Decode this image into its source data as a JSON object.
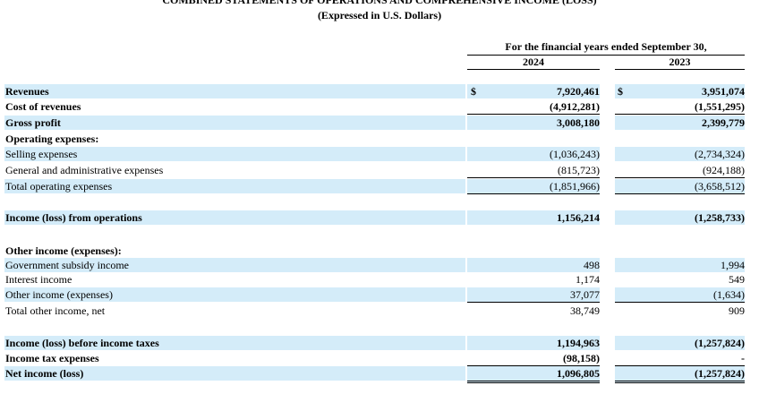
{
  "header": {
    "title": "COMBINED STATEMENTS OF OPERATIONS AND COMPREHENSIVE INCOME (LOSS)",
    "subtitle": "(Expressed in U.S. Dollars)"
  },
  "table": {
    "period_header": "For the financial years ended September 30,",
    "years": [
      "2024",
      "2023"
    ],
    "currency_symbol": "$",
    "rows": [
      {
        "label": "Revenues",
        "v2024": "7,920,461",
        "v2023": "3,951,074"
      },
      {
        "label": "Cost of revenues",
        "v2024": "(4,912,281)",
        "v2023": "(1,551,295)"
      },
      {
        "label": "Gross profit",
        "v2024": "3,008,180",
        "v2023": "2,399,779"
      },
      {
        "label": "Operating expenses:",
        "v2024": null,
        "v2023": null
      },
      {
        "label": "Selling expenses",
        "v2024": "(1,036,243)",
        "v2023": "(2,734,324)"
      },
      {
        "label": "General and administrative expenses",
        "v2024": "(815,723)",
        "v2023": "(924,188)"
      },
      {
        "label": "Total operating expenses",
        "v2024": "(1,851,966)",
        "v2023": "(3,658,512)"
      },
      {
        "label": "Income (loss) from operations",
        "v2024": "1,156,214",
        "v2023": "(1,258,733)"
      },
      {
        "label": "Other income (expenses):",
        "v2024": null,
        "v2023": null
      },
      {
        "label": "Government subsidy income",
        "v2024": "498",
        "v2023": "1,994"
      },
      {
        "label": "Interest income",
        "v2024": "1,174",
        "v2023": "549"
      },
      {
        "label": "Other income (expenses)",
        "v2024": "37,077",
        "v2023": "(1,634)"
      },
      {
        "label": "Total other income, net",
        "v2024": "38,749",
        "v2023": "909"
      },
      {
        "label": "Income (loss) before income taxes",
        "v2024": "1,194,963",
        "v2023": "(1,257,824)"
      },
      {
        "label": "Income tax expenses",
        "v2024": "(98,158)",
        "v2023": "-"
      },
      {
        "label": "Net income (loss)",
        "v2024": "1,096,805",
        "v2023": "(1,257,824)"
      }
    ]
  }
}
